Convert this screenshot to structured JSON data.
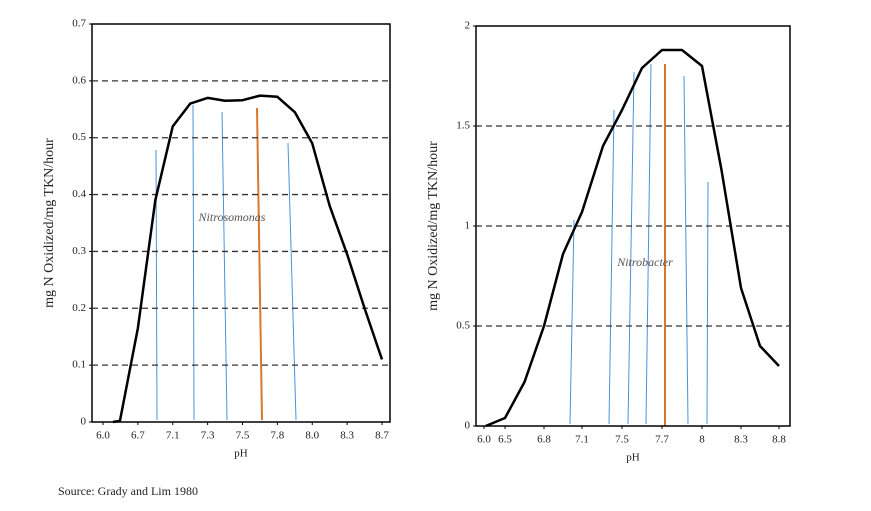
{
  "charts": {
    "chart_data": [
      {
        "type": "line",
        "xlabel": "pH",
        "ylabel": "mg N Oxidized/mg TKN/hour",
        "annotation": "Nitrosomonas",
        "x": [
          6.2,
          6.34,
          6.7,
          6.9,
          7.1,
          7.2,
          7.3,
          7.4,
          7.5,
          7.65,
          7.8,
          7.9,
          8.0,
          8.15,
          8.3,
          8.5,
          8.7
        ],
        "series": [
          {
            "color": "#000000",
            "values": [
              0,
              0.002,
              0.165,
              0.39,
              0.52,
              0.56,
              0.57,
              0.565,
              0.566,
              0.574,
              0.572,
              0.545,
              0.49,
              0.38,
              0.295,
              0.2,
              0.11
            ]
          }
        ],
        "xticks": [
          {
            "value": 6,
            "label": "6.0"
          },
          6.7,
          7.1,
          7.3,
          7.5,
          7.8,
          {
            "value": 8,
            "label": "8.0"
          },
          8.3,
          8.7
        ],
        "ylim": [
          0,
          0.7
        ],
        "yticks": [
          0,
          0.1,
          0.2,
          0.3,
          0.4,
          0.5,
          0.6,
          0.7
        ],
        "grid": true
      },
      {
        "type": "line",
        "xlabel": "pH",
        "ylabel": "mg N Oxidized/mg TKN/hour",
        "annotation": "Nitrobacter",
        "x": [
          6.04,
          6.5,
          6.65,
          6.8,
          6.95,
          7.1,
          7.31,
          7.5,
          7.6,
          7.7,
          7.85,
          8,
          8.15,
          8.3,
          8.55,
          8.8
        ],
        "series": [
          {
            "color": "#000000",
            "values": [
              0,
              0.04,
              0.22,
              0.5,
              0.86,
              1.07,
              1.4,
              1.58,
              1.79,
              1.88,
              1.88,
              1.8,
              1.28,
              0.69,
              0.4,
              0.3
            ]
          }
        ],
        "xticks": [
          {
            "value": 6,
            "label": "6.0"
          },
          6.5,
          6.8,
          7.1,
          7.5,
          7.7,
          8,
          8.3,
          8.8
        ],
        "ylim": [
          0,
          2
        ],
        "yticks": [
          0,
          0.5,
          1,
          1.5,
          2
        ],
        "grid": true
      }
    ]
  },
  "source": "Source:  Grady and Lim 1980"
}
